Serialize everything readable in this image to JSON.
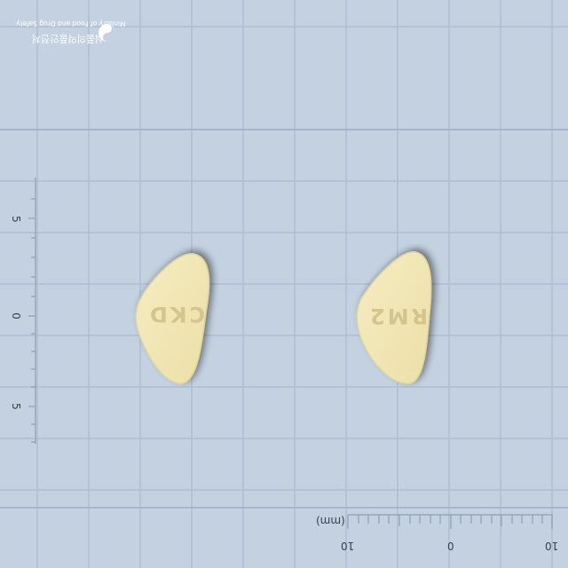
{
  "logo": {
    "name_ko": "식품의약품안전처",
    "name_en": "Ministry of Food and Drug Safety"
  },
  "tablets": [
    {
      "imprint": "CKD"
    },
    {
      "imprint": "RM2"
    }
  ],
  "vertical_scale": {
    "labels": [
      "5",
      "0",
      "5"
    ]
  },
  "horizontal_scale": {
    "unit": "(mm)",
    "labels": [
      "10",
      "0",
      "10"
    ]
  },
  "colors": {
    "background": "#c3d1e0",
    "grid": "#aebdd0",
    "tablet": "#f0e6b4",
    "tablet_edge": "#d9cc92",
    "imprint": "#cbbb7e",
    "logo": "#ffffff"
  }
}
